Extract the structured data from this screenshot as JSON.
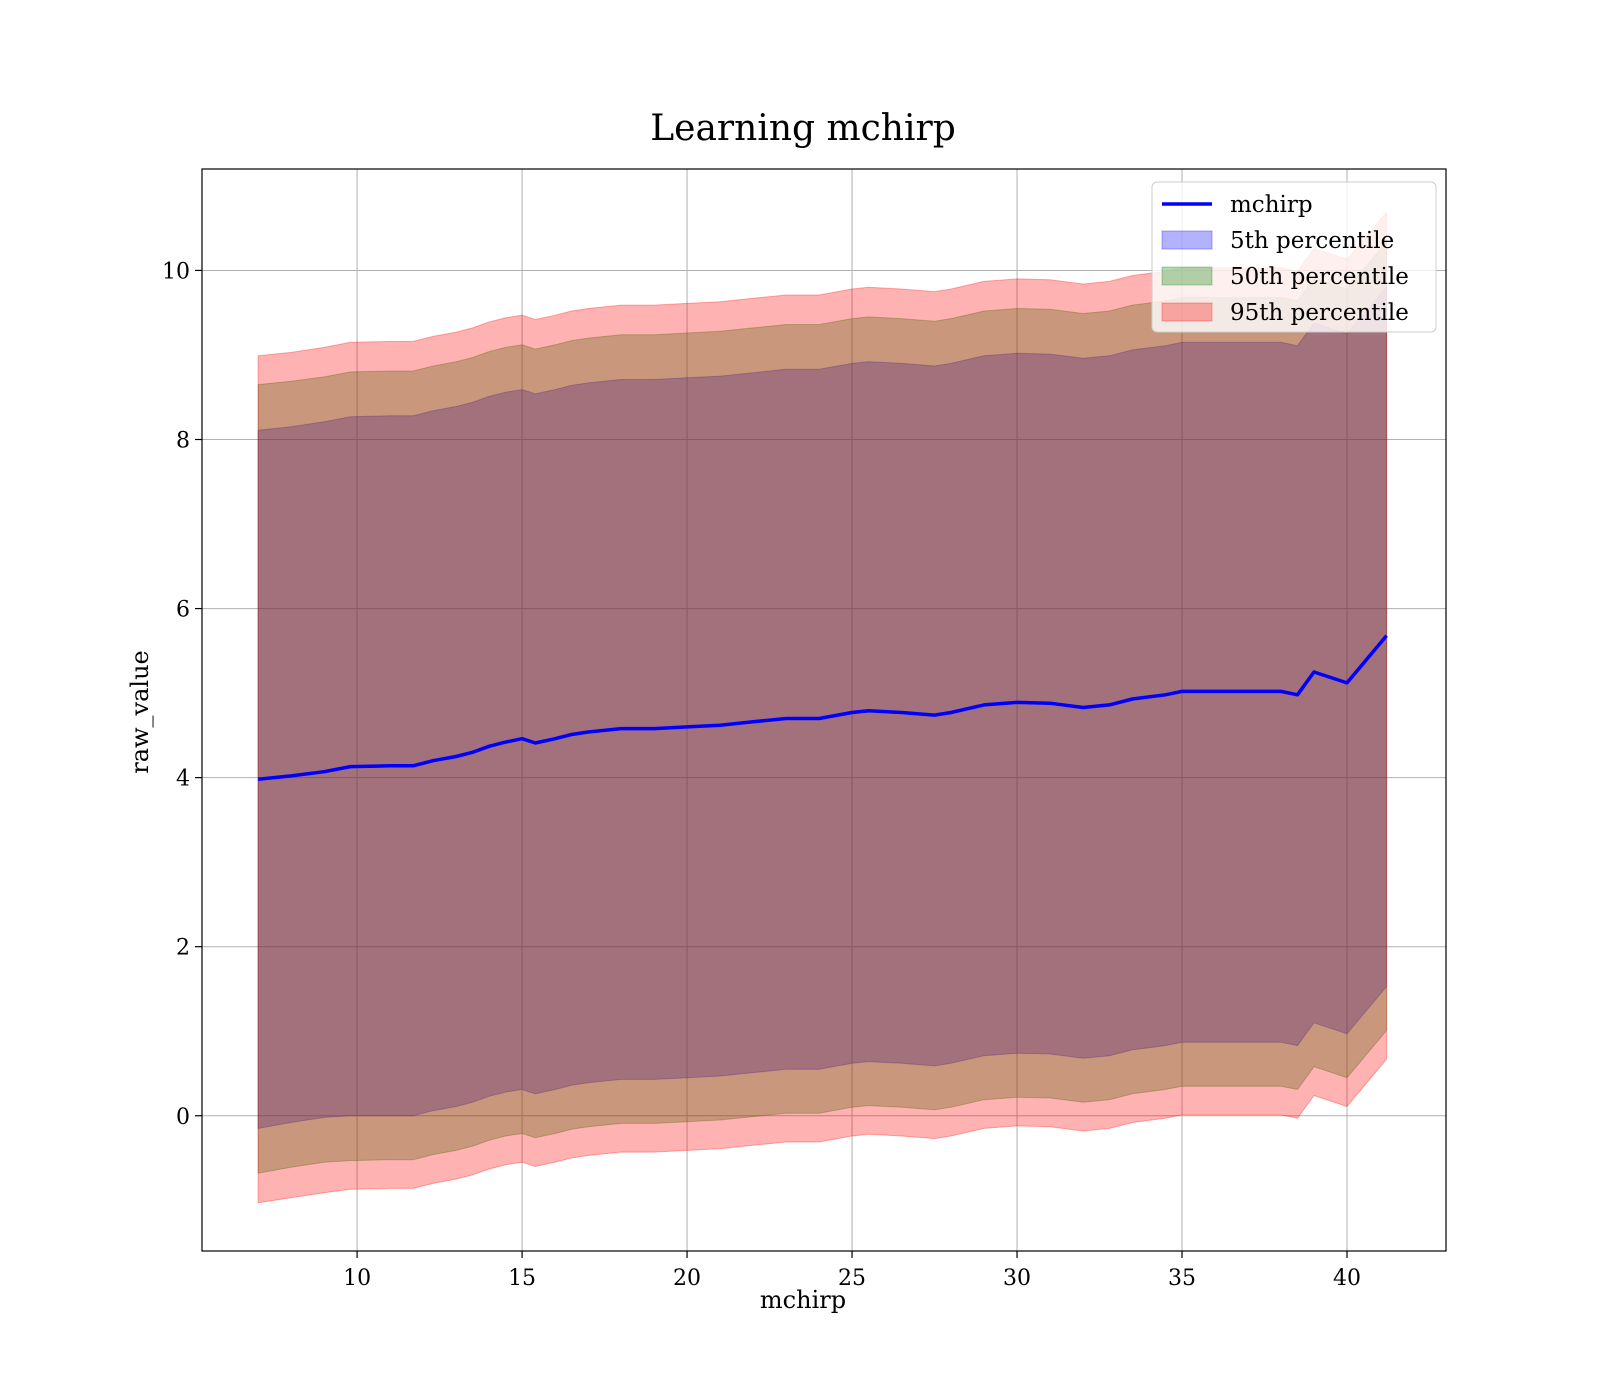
{
  "chart_data": {
    "type": "line",
    "title": "Learning mchirp",
    "xlabel": "mchirp",
    "ylabel": "raw_value",
    "xlim": [
      5.3,
      43.0
    ],
    "ylim": [
      -1.6,
      11.2
    ],
    "xticks": [
      10,
      15,
      20,
      25,
      30,
      35,
      40
    ],
    "yticks": [
      0,
      2,
      4,
      6,
      8,
      10
    ],
    "grid": true,
    "legend_position": "top-right",
    "x": [
      7.0,
      8.0,
      9.0,
      9.8,
      11.0,
      11.7,
      12.3,
      13.0,
      13.5,
      14.0,
      14.5,
      15.0,
      15.4,
      16.0,
      16.5,
      17.0,
      18.0,
      19.0,
      20.0,
      21.0,
      22.0,
      23.0,
      24.0,
      25.0,
      25.5,
      26.5,
      27.5,
      28.0,
      29.0,
      30.0,
      31.0,
      32.0,
      32.8,
      33.5,
      34.5,
      35.0,
      36.0,
      37.0,
      38.0,
      38.5,
      39.0,
      40.0,
      41.2
    ],
    "series": [
      {
        "name": "mchirp",
        "kind": "line",
        "color": "#0000ff",
        "values": [
          3.98,
          4.02,
          4.07,
          4.13,
          4.14,
          4.14,
          4.2,
          4.25,
          4.3,
          4.37,
          4.42,
          4.46,
          4.41,
          4.46,
          4.51,
          4.54,
          4.58,
          4.58,
          4.6,
          4.62,
          4.66,
          4.7,
          4.7,
          4.77,
          4.79,
          4.77,
          4.74,
          4.77,
          4.86,
          4.89,
          4.88,
          4.83,
          4.86,
          4.93,
          4.98,
          5.02,
          5.02,
          5.02,
          5.02,
          4.98,
          5.25,
          5.12,
          5.68
        ]
      },
      {
        "name": "5th percentile",
        "kind": "band",
        "color": "#0000ff",
        "opacity": 0.3,
        "lower": [
          -0.15,
          -0.08,
          -0.02,
          0.0,
          0.0,
          0.0,
          0.06,
          0.11,
          0.16,
          0.23,
          0.28,
          0.31,
          0.26,
          0.31,
          0.36,
          0.39,
          0.43,
          0.43,
          0.45,
          0.47,
          0.51,
          0.55,
          0.55,
          0.62,
          0.64,
          0.62,
          0.59,
          0.62,
          0.71,
          0.74,
          0.73,
          0.68,
          0.71,
          0.78,
          0.83,
          0.87,
          0.87,
          0.87,
          0.87,
          0.83,
          1.1,
          0.97,
          1.53
        ],
        "upper": [
          8.11,
          8.15,
          8.21,
          8.27,
          8.28,
          8.28,
          8.34,
          8.39,
          8.44,
          8.51,
          8.56,
          8.59,
          8.54,
          8.59,
          8.64,
          8.67,
          8.71,
          8.71,
          8.73,
          8.75,
          8.79,
          8.83,
          8.83,
          8.9,
          8.92,
          8.9,
          8.87,
          8.9,
          8.99,
          9.02,
          9.01,
          8.96,
          8.99,
          9.06,
          9.11,
          9.15,
          9.15,
          9.15,
          9.15,
          9.11,
          9.38,
          9.25,
          9.81
        ]
      },
      {
        "name": "50th percentile",
        "kind": "band",
        "color": "#008000",
        "opacity": 0.3,
        "lower": [
          -0.68,
          -0.61,
          -0.55,
          -0.53,
          -0.52,
          -0.52,
          -0.46,
          -0.41,
          -0.36,
          -0.29,
          -0.24,
          -0.21,
          -0.26,
          -0.21,
          -0.16,
          -0.13,
          -0.09,
          -0.09,
          -0.07,
          -0.05,
          -0.01,
          0.03,
          0.03,
          0.1,
          0.12,
          0.1,
          0.07,
          0.1,
          0.19,
          0.22,
          0.21,
          0.16,
          0.19,
          0.26,
          0.31,
          0.35,
          0.35,
          0.35,
          0.35,
          0.31,
          0.58,
          0.45,
          1.01
        ],
        "upper": [
          8.65,
          8.69,
          8.74,
          8.8,
          8.81,
          8.81,
          8.87,
          8.92,
          8.97,
          9.04,
          9.09,
          9.12,
          9.07,
          9.12,
          9.17,
          9.2,
          9.24,
          9.24,
          9.26,
          9.28,
          9.32,
          9.36,
          9.36,
          9.43,
          9.45,
          9.43,
          9.4,
          9.43,
          9.52,
          9.55,
          9.54,
          9.49,
          9.52,
          9.59,
          9.64,
          9.68,
          9.68,
          9.68,
          9.68,
          9.64,
          9.91,
          9.78,
          10.34
        ]
      },
      {
        "name": "95th percentile",
        "kind": "band",
        "color": "#ff0000",
        "opacity": 0.3,
        "lower": [
          -1.03,
          -0.97,
          -0.91,
          -0.87,
          -0.86,
          -0.86,
          -0.8,
          -0.75,
          -0.7,
          -0.63,
          -0.58,
          -0.55,
          -0.6,
          -0.55,
          -0.5,
          -0.47,
          -0.43,
          -0.43,
          -0.41,
          -0.39,
          -0.35,
          -0.31,
          -0.31,
          -0.24,
          -0.22,
          -0.24,
          -0.27,
          -0.24,
          -0.15,
          -0.12,
          -0.13,
          -0.18,
          -0.15,
          -0.08,
          -0.03,
          0.01,
          0.01,
          0.01,
          0.01,
          -0.03,
          0.24,
          0.11,
          0.67
        ],
        "upper": [
          8.99,
          9.03,
          9.09,
          9.15,
          9.16,
          9.16,
          9.22,
          9.27,
          9.32,
          9.39,
          9.44,
          9.47,
          9.42,
          9.47,
          9.52,
          9.55,
          9.59,
          9.59,
          9.61,
          9.63,
          9.67,
          9.71,
          9.71,
          9.78,
          9.8,
          9.78,
          9.75,
          9.78,
          9.87,
          9.9,
          9.89,
          9.84,
          9.87,
          9.94,
          9.99,
          10.03,
          10.03,
          10.03,
          10.03,
          9.99,
          10.26,
          10.13,
          10.69
        ]
      }
    ]
  }
}
